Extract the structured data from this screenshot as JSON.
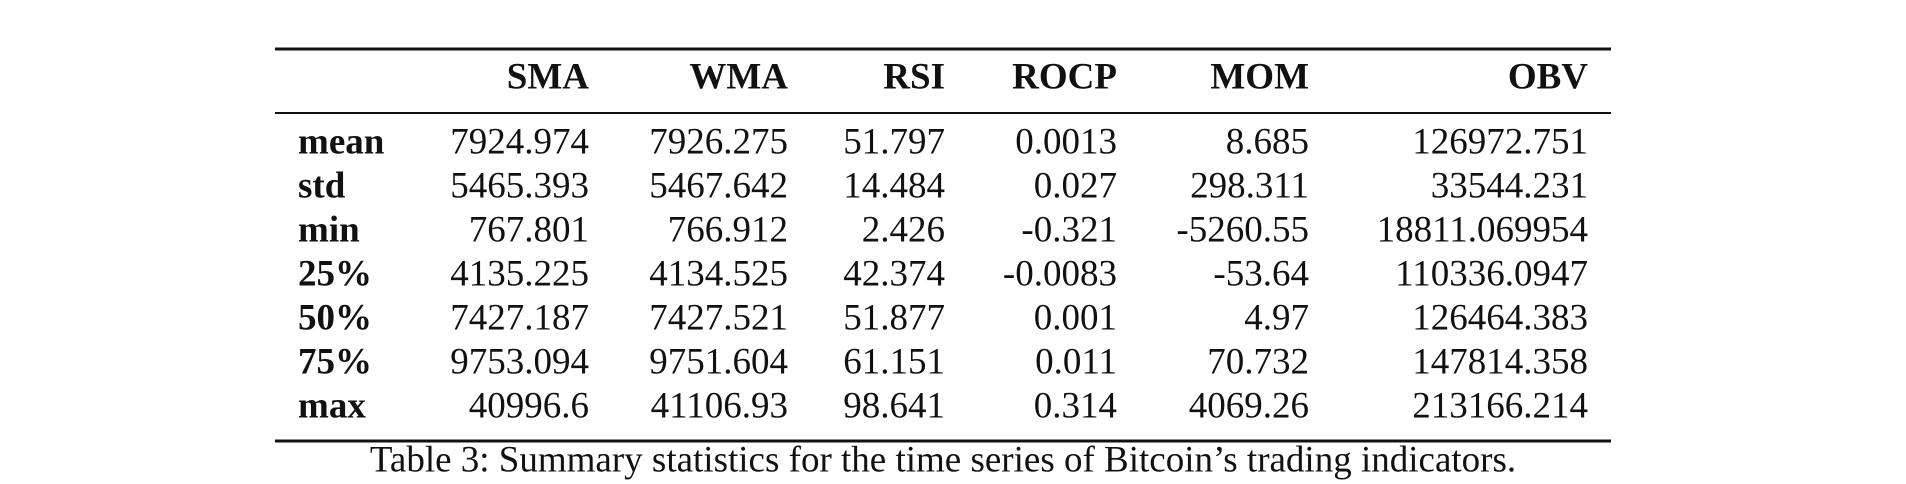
{
  "table": {
    "columns": [
      "SMA",
      "WMA",
      "RSI",
      "ROCP",
      "MOM",
      "OBV"
    ],
    "rows": [
      {
        "label": "mean",
        "values": [
          "7924.974",
          "7926.275",
          "51.797",
          "0.0013",
          "8.685",
          "126972.751"
        ]
      },
      {
        "label": "std",
        "values": [
          "5465.393",
          "5467.642",
          "14.484",
          "0.027",
          "298.311",
          "33544.231"
        ]
      },
      {
        "label": "min",
        "values": [
          "767.801",
          "766.912",
          "2.426",
          "-0.321",
          "-5260.55",
          "18811.069954"
        ]
      },
      {
        "label": "25%",
        "values": [
          "4135.225",
          "4134.525",
          "42.374",
          "-0.0083",
          "-53.64",
          "110336.0947"
        ]
      },
      {
        "label": "50%",
        "values": [
          "7427.187",
          "7427.521",
          "51.877",
          "0.001",
          "4.97",
          "126464.383"
        ]
      },
      {
        "label": "75%",
        "values": [
          "9753.094",
          "9751.604",
          "61.151",
          "0.011",
          "70.732",
          "147814.358"
        ]
      },
      {
        "label": "max",
        "values": [
          "40996.6",
          "41106.93",
          "98.641",
          "0.314",
          "4069.26",
          "213166.214"
        ]
      }
    ],
    "caption": "Table 3: Summary statistics for the time series of Bitcoin’s trading indicators."
  }
}
